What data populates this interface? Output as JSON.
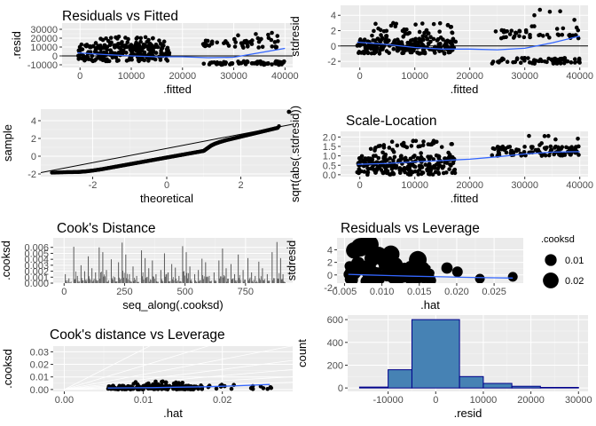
{
  "theme": {
    "panel_bg": "#ebebeb",
    "grid_major": "#ffffff",
    "point": "#000000",
    "smooth": "#3366ff",
    "bar_fill": "#4682b4",
    "bar_outline": "#00008b",
    "segment": "#595959"
  },
  "chart_data": [
    {
      "id": "resid-fitted",
      "type": "scatter",
      "title": "Residuals vs Fitted",
      "xlabel": ".fitted",
      "ylabel": ".resid",
      "xlim": [
        -3500,
        41500
      ],
      "ylim": [
        -13000,
        37000
      ],
      "xticks": [
        0,
        10000,
        20000,
        30000,
        40000
      ],
      "xtick_labels": [
        "0",
        "10000",
        "20000",
        "30000",
        "40000"
      ],
      "yticks": [
        -10000,
        0,
        10000,
        20000,
        30000
      ],
      "ytick_labels": [
        "-10000",
        "0",
        "10000",
        "20000",
        "30000"
      ],
      "hline": 0,
      "clusters": [
        {
          "x": [
            -500,
            17500
          ],
          "y": [
            -6000,
            13000
          ],
          "n": 230
        },
        {
          "x": [
            3000,
            17000
          ],
          "y": [
            10000,
            22000
          ],
          "n": 45
        },
        {
          "x": [
            24000,
            40000
          ],
          "y": [
            -10000,
            -6000
          ],
          "n": 70
        },
        {
          "x": [
            24000,
            40000
          ],
          "y": [
            9000,
            18000
          ],
          "n": 40
        },
        {
          "x": [
            30000,
            40000
          ],
          "y": [
            18000,
            27000
          ],
          "n": 12
        }
      ],
      "smooth": {
        "x": [
          -500,
          5000,
          10000,
          15000,
          20000,
          25000,
          30000,
          35000,
          40000
        ],
        "y": [
          3500,
          1500,
          0,
          -1000,
          -1000,
          -2000,
          -1500,
          3500,
          8500
        ]
      }
    },
    {
      "id": "stdresid-fitted",
      "type": "scatter",
      "title": "",
      "xlabel": ".fitted",
      "ylabel": "stdresid",
      "xlim": [
        -3500,
        41500
      ],
      "ylim": [
        -2.8,
        5.3
      ],
      "xticks": [
        0,
        10000,
        20000,
        30000,
        40000
      ],
      "xtick_labels": [
        "0",
        "10000",
        "20000",
        "30000",
        "40000"
      ],
      "yticks": [
        -2,
        0,
        2,
        4
      ],
      "ytick_labels": [
        "-2",
        "0",
        "2",
        "4"
      ],
      "hline": 0,
      "clusters": [
        {
          "x": [
            -500,
            17500
          ],
          "y": [
            -1.0,
            1.0
          ],
          "n": 230
        },
        {
          "x": [
            2000,
            17000
          ],
          "y": [
            1.0,
            3.0
          ],
          "n": 45
        },
        {
          "x": [
            24000,
            40000
          ],
          "y": [
            -2.3,
            -1.5
          ],
          "n": 70
        },
        {
          "x": [
            24000,
            40000
          ],
          "y": [
            1.0,
            2.2
          ],
          "n": 40
        },
        {
          "x": [
            30000,
            40000
          ],
          "y": [
            2.2,
            4.8
          ],
          "n": 10
        }
      ],
      "smooth": {
        "x": [
          -500,
          5000,
          10000,
          15000,
          20000,
          25000,
          30000,
          35000,
          40000
        ],
        "y": [
          0.5,
          0.2,
          -0.2,
          -0.4,
          -0.4,
          -0.5,
          -0.3,
          0.4,
          1.3
        ]
      }
    },
    {
      "id": "qq",
      "type": "scatter",
      "title": "",
      "xlabel": "theoretical",
      "ylabel": "sample",
      "xlim": [
        -3.4,
        3.4
      ],
      "ylim": [
        -2.3,
        5.3
      ],
      "xticks": [
        -2,
        0,
        2
      ],
      "xtick_labels": [
        "-2",
        "0",
        "2"
      ],
      "yticks": [
        -2,
        0,
        2,
        4
      ],
      "ytick_labels": [
        "-2",
        "0",
        "2",
        "4"
      ],
      "refline": {
        "x": [
          -3.4,
          3.4
        ],
        "y": [
          -1.85,
          3.6
        ]
      },
      "qq_points": {
        "theoretical": [
          -3.1,
          -2.7,
          -2.4,
          -2.2,
          -2.0,
          -1.8,
          -1.6,
          -1.4,
          -1.2,
          -1.0,
          -0.8,
          -0.6,
          -0.4,
          -0.2,
          0.0,
          0.2,
          0.4,
          0.6,
          0.8,
          1.0,
          1.1,
          1.2,
          1.3,
          1.4,
          1.5,
          1.6,
          1.8,
          2.0,
          2.2,
          2.4,
          2.6,
          2.8,
          3.0,
          3.3
        ],
        "sample": [
          -1.85,
          -1.8,
          -1.78,
          -1.72,
          -1.62,
          -1.5,
          -1.35,
          -1.2,
          -1.05,
          -0.9,
          -0.75,
          -0.6,
          -0.45,
          -0.3,
          -0.15,
          0.0,
          0.15,
          0.3,
          0.45,
          0.6,
          0.9,
          1.2,
          1.4,
          1.55,
          1.68,
          1.8,
          2.0,
          2.2,
          2.4,
          2.6,
          2.8,
          3.0,
          3.2,
          5.0
        ]
      }
    },
    {
      "id": "scale-location",
      "type": "scatter",
      "title": "Scale-Location",
      "xlabel": ".fitted",
      "ylabel": "sqrt(abs(.stdresid))",
      "xlim": [
        -3500,
        41500
      ],
      "ylim": [
        -0.1,
        2.3
      ],
      "xticks": [
        0,
        10000,
        20000,
        30000,
        40000
      ],
      "xtick_labels": [
        "0",
        "10000",
        "20000",
        "30000",
        "40000"
      ],
      "yticks": [
        0.0,
        0.5,
        1.0,
        1.5,
        2.0
      ],
      "ytick_labels": [
        "0.0",
        "0.5",
        "1.0",
        "1.5",
        "2.0"
      ],
      "clusters": [
        {
          "x": [
            -500,
            17500
          ],
          "y": [
            0.0,
            1.0
          ],
          "n": 230
        },
        {
          "x": [
            2000,
            17000
          ],
          "y": [
            1.0,
            1.8
          ],
          "n": 45
        },
        {
          "x": [
            24000,
            40000
          ],
          "y": [
            1.0,
            1.5
          ],
          "n": 90
        },
        {
          "x": [
            30000,
            40000
          ],
          "y": [
            1.5,
            2.2
          ],
          "n": 8
        }
      ],
      "smooth": {
        "x": [
          -500,
          5000,
          10000,
          15000,
          20000,
          25000,
          30000,
          35000,
          40000
        ],
        "y": [
          0.55,
          0.6,
          0.68,
          0.75,
          0.82,
          0.95,
          1.1,
          1.2,
          1.22
        ]
      }
    },
    {
      "id": "cooks-distance",
      "type": "bar",
      "title": "Cook's Distance",
      "xlabel": "seq_along(.cooksd)",
      "ylabel": ".cooksd",
      "xlim": [
        -45,
        945
      ],
      "ylim": [
        0,
        0.0076
      ],
      "xticks": [
        0,
        250,
        500,
        750
      ],
      "xtick_labels": [
        "0",
        "250",
        "500",
        "750"
      ],
      "yticks": [
        0.0,
        0.001,
        0.002,
        0.003,
        0.004,
        0.005,
        0.006
      ],
      "ytick_labels": [
        "0.000",
        "0.001",
        "0.002",
        "0.003",
        "0.004",
        "0.005",
        "0.006"
      ],
      "segments": {
        "x": [
          5,
          20,
          40,
          55,
          70,
          85,
          100,
          115,
          130,
          145,
          160,
          175,
          195,
          210,
          225,
          240,
          255,
          270,
          285,
          300,
          320,
          335,
          350,
          365,
          380,
          400,
          415,
          430,
          445,
          460,
          475,
          490,
          505,
          520,
          540,
          555,
          570,
          585,
          600,
          620,
          640,
          655,
          670,
          690,
          705,
          720,
          740,
          760,
          775,
          790,
          805,
          820,
          840,
          860,
          880,
          895,
          905
        ],
        "y": [
          0.0015,
          0.0008,
          0.0061,
          0.0012,
          0.003,
          0.002,
          0.0045,
          0.0025,
          0.0018,
          0.006,
          0.0052,
          0.0022,
          0.004,
          0.001,
          0.0035,
          0.0068,
          0.0048,
          0.0015,
          0.0028,
          0.0012,
          0.0055,
          0.0042,
          0.0025,
          0.0038,
          0.0015,
          0.0022,
          0.005,
          0.0018,
          0.0032,
          0.0026,
          0.0012,
          0.0062,
          0.0052,
          0.0028,
          0.0015,
          0.0022,
          0.0041,
          0.0035,
          0.0012,
          0.0018,
          0.0038,
          0.0058,
          0.0025,
          0.0032,
          0.0015,
          0.0048,
          0.0022,
          0.0042,
          0.0018,
          0.0012,
          0.0036,
          0.0025,
          0.0015,
          0.0052,
          0.0069,
          0.0042,
          0.0015
        ]
      }
    },
    {
      "id": "resid-leverage",
      "type": "scatter",
      "title": "Residuals vs Leverage",
      "xlabel": ".hat",
      "ylabel": "stdresid",
      "xlim": [
        0.004,
        0.0289
      ],
      "ylim": [
        -1.3,
        5.9
      ],
      "xticks": [
        0.005,
        0.01,
        0.015,
        0.02,
        0.025
      ],
      "xtick_labels": [
        "0.005",
        "0.010",
        "0.015",
        "0.020",
        "0.025"
      ],
      "yticks": [
        -2,
        0,
        2,
        4
      ],
      "ytick_labels": [
        "-2",
        "0",
        "2",
        "4"
      ],
      "smooth": {
        "x": [
          0.0055,
          0.008,
          0.011,
          0.014,
          0.018,
          0.022,
          0.025,
          0.0275
        ],
        "y": [
          0.1,
          0.0,
          -0.1,
          -0.2,
          -0.3,
          -0.4,
          -0.45,
          -0.5
        ]
      },
      "bubbles": {
        "x": [
          0.0063,
          0.0071,
          0.0082,
          0.0096,
          0.0102,
          0.0118,
          0.0126,
          0.0148,
          0.0061,
          0.0079,
          0.0091,
          0.0109,
          0.0133,
          0.0158,
          0.0166,
          0.0187,
          0.0201,
          0.0231,
          0.0275,
          0.0068,
          0.0087,
          0.0112,
          0.0141,
          0.0067,
          0.0097
        ],
        "y": [
          3.9,
          4.4,
          4.8,
          3.2,
          2.2,
          1.6,
          0.8,
          2.4,
          -0.8,
          -1.0,
          -0.7,
          0.4,
          0.2,
          0.6,
          -0.9,
          1.1,
          0.5,
          -0.6,
          -0.3,
          1.8,
          2.6,
          3.3,
          1.2,
          0.2,
          -0.2
        ],
        "size": [
          0.015,
          0.02,
          0.025,
          0.014,
          0.008,
          0.012,
          0.006,
          0.018,
          0.005,
          0.006,
          0.005,
          0.003,
          0.004,
          0.005,
          0.004,
          0.006,
          0.005,
          0.004,
          0.004,
          0.01,
          0.013,
          0.017,
          0.007,
          0.002,
          0.002
        ]
      },
      "legend": {
        "title": ".cooksd",
        "entries": [
          "0.01",
          "0.02"
        ],
        "sizes": [
          0.01,
          0.02
        ],
        "placement": "right"
      }
    },
    {
      "id": "cooks-leverage",
      "type": "scatter",
      "title": "Cook's distance vs Leverage",
      "xlabel": ".hat",
      "ylabel": ".cooksd",
      "xlim": [
        -0.0014,
        0.0289
      ],
      "ylim": [
        -0.0015,
        0.0345
      ],
      "xticks": [
        0.0,
        0.01,
        0.02
      ],
      "xtick_labels": [
        "0.00",
        "0.01",
        "0.02"
      ],
      "yticks": [
        0.0,
        0.01,
        0.02,
        0.03
      ],
      "ytick_labels": [
        "0.00",
        "0.01",
        "0.02",
        "0.03"
      ],
      "fan_slopes": [
        0.2,
        0.35,
        0.55,
        0.8,
        1.2,
        1.9,
        3.2
      ],
      "clusters": [
        {
          "x": [
            0.0055,
            0.017
          ],
          "y": [
            0.0,
            0.003
          ],
          "n": 180
        },
        {
          "x": [
            0.0085,
            0.015
          ],
          "y": [
            0.003,
            0.0065
          ],
          "n": 25
        },
        {
          "x": [
            0.017,
            0.0265
          ],
          "y": [
            0.0,
            0.004
          ],
          "n": 20
        }
      ],
      "smooth": {
        "x": [
          0.0055,
          0.008,
          0.011,
          0.014,
          0.018,
          0.022,
          0.026
        ],
        "y": [
          0.0012,
          0.0013,
          0.0015,
          0.0018,
          0.0022,
          0.003,
          0.004
        ]
      }
    },
    {
      "id": "resid-histogram",
      "type": "bar",
      "title": "",
      "xlabel": ".resid",
      "ylabel": "count",
      "xlim": [
        -18500,
        32000
      ],
      "ylim": [
        -30,
        640
      ],
      "xticks": [
        -10000,
        0,
        10000,
        20000,
        30000
      ],
      "xtick_labels": [
        "-10000",
        "0",
        "10000",
        "20000",
        "30000"
      ],
      "yticks": [
        0,
        200,
        400,
        600
      ],
      "ytick_labels": [
        "0",
        "200",
        "400",
        "600"
      ],
      "bins": [
        {
          "x0": -16000,
          "x1": -10000,
          "count": 8
        },
        {
          "x0": -10000,
          "x1": -5000,
          "count": 160
        },
        {
          "x0": -5000,
          "x1": 5000,
          "count": 600
        },
        {
          "x0": 5000,
          "x1": 10000,
          "count": 100
        },
        {
          "x0": 10000,
          "x1": 16000,
          "count": 40
        },
        {
          "x0": 16000,
          "x1": 22000,
          "count": 15
        },
        {
          "x0": 22000,
          "x1": 30000,
          "count": 5
        }
      ]
    }
  ]
}
